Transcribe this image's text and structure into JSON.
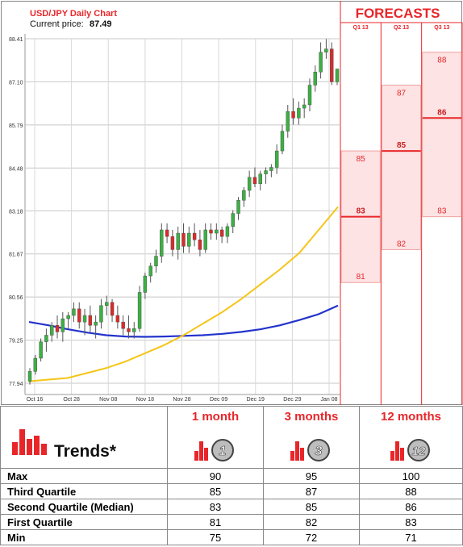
{
  "header": {
    "title": "USD/JPY Daily Chart",
    "current_price_label": "Current price:",
    "current_price_value": "87.49",
    "forecasts_title": "FORECASTS"
  },
  "colors": {
    "accent_red": "#e8262a",
    "bull_candle": "#3cb043",
    "bear_candle": "#d92b2b",
    "ma_fast": "#f5c518",
    "ma_slow": "#2233cc",
    "forecast_fill": "#fde3e3",
    "forecast_line": "#e8262a"
  },
  "chart_data": {
    "type": "candlestick",
    "y_ticks": [
      "88.41",
      "87.10",
      "85.79",
      "84.48",
      "83.18",
      "81.87",
      "80.56",
      "79.25",
      "77.94"
    ],
    "ylim": [
      77.94,
      88.41
    ],
    "x_ticks": [
      "Oct 16",
      "Oct 28",
      "Nov 08",
      "Nov 18",
      "Nov 28",
      "Dec 09",
      "Dec 19",
      "Dec 29",
      "Jan 08"
    ],
    "candles": [
      [
        78.0,
        78.4,
        77.9,
        78.3
      ],
      [
        78.3,
        78.8,
        78.2,
        78.7
      ],
      [
        78.7,
        79.3,
        78.6,
        79.2
      ],
      [
        79.2,
        79.6,
        78.9,
        79.4
      ],
      [
        79.4,
        79.8,
        79.2,
        79.7
      ],
      [
        79.7,
        80.0,
        79.3,
        79.5
      ],
      [
        79.5,
        80.1,
        79.2,
        79.9
      ],
      [
        79.9,
        80.1,
        79.6,
        80.0
      ],
      [
        80.0,
        80.4,
        79.8,
        80.2
      ],
      [
        80.2,
        80.4,
        79.6,
        79.8
      ],
      [
        79.8,
        80.2,
        79.4,
        80.0
      ],
      [
        80.0,
        80.3,
        79.5,
        79.7
      ],
      [
        79.7,
        80.0,
        79.3,
        79.8
      ],
      [
        79.8,
        80.5,
        79.6,
        80.3
      ],
      [
        80.3,
        80.6,
        80.0,
        80.4
      ],
      [
        80.4,
        80.5,
        79.8,
        80.0
      ],
      [
        80.0,
        80.3,
        79.6,
        79.8
      ],
      [
        79.8,
        80.0,
        79.4,
        79.6
      ],
      [
        79.6,
        80.0,
        79.3,
        79.5
      ],
      [
        79.5,
        79.8,
        79.3,
        79.6
      ],
      [
        79.6,
        80.9,
        79.5,
        80.7
      ],
      [
        80.7,
        81.3,
        80.5,
        81.2
      ],
      [
        81.2,
        81.6,
        81.0,
        81.5
      ],
      [
        81.5,
        82.0,
        81.3,
        81.8
      ],
      [
        81.8,
        82.8,
        81.6,
        82.6
      ],
      [
        82.6,
        82.8,
        82.2,
        82.4
      ],
      [
        82.4,
        82.6,
        81.8,
        82.0
      ],
      [
        82.0,
        82.7,
        81.7,
        82.5
      ],
      [
        82.5,
        82.8,
        81.9,
        82.1
      ],
      [
        82.1,
        82.7,
        81.9,
        82.5
      ],
      [
        82.5,
        82.8,
        82.1,
        82.3
      ],
      [
        82.3,
        82.6,
        81.8,
        82.0
      ],
      [
        82.0,
        82.8,
        81.9,
        82.6
      ],
      [
        82.6,
        82.8,
        82.3,
        82.5
      ],
      [
        82.5,
        82.8,
        82.3,
        82.6
      ],
      [
        82.6,
        82.7,
        82.2,
        82.4
      ],
      [
        82.4,
        82.8,
        82.2,
        82.7
      ],
      [
        82.7,
        83.2,
        82.5,
        83.1
      ],
      [
        83.1,
        83.6,
        82.9,
        83.5
      ],
      [
        83.5,
        83.9,
        83.3,
        83.8
      ],
      [
        83.8,
        84.4,
        83.6,
        84.2
      ],
      [
        84.2,
        84.5,
        83.9,
        84.0
      ],
      [
        84.0,
        84.4,
        83.8,
        84.3
      ],
      [
        84.3,
        84.5,
        84.0,
        84.4
      ],
      [
        84.4,
        84.6,
        84.2,
        84.5
      ],
      [
        84.5,
        85.2,
        84.3,
        85.0
      ],
      [
        85.0,
        85.8,
        84.9,
        85.6
      ],
      [
        85.6,
        86.4,
        85.4,
        86.2
      ],
      [
        86.2,
        86.6,
        85.8,
        86.0
      ],
      [
        86.0,
        86.5,
        85.8,
        86.3
      ],
      [
        86.3,
        86.6,
        86.0,
        86.4
      ],
      [
        86.4,
        87.2,
        86.2,
        87.0
      ],
      [
        87.0,
        87.6,
        86.8,
        87.4
      ],
      [
        87.4,
        88.3,
        87.2,
        88.0
      ],
      [
        88.0,
        88.4,
        87.8,
        88.1
      ],
      [
        88.1,
        88.3,
        87.0,
        87.1
      ],
      [
        87.1,
        87.5,
        87.0,
        87.49
      ]
    ],
    "ma_fast": [
      78.0,
      78.05,
      78.1,
      78.25,
      78.4,
      78.6,
      78.85,
      79.1,
      79.4,
      79.75,
      80.1,
      80.5,
      80.95,
      81.4,
      81.9,
      82.6,
      83.3
    ],
    "ma_slow": [
      79.8,
      79.7,
      79.58,
      79.48,
      79.4,
      79.36,
      79.35,
      79.36,
      79.38,
      79.4,
      79.44,
      79.5,
      79.58,
      79.7,
      79.86,
      80.04,
      80.3
    ],
    "forecast_columns": [
      {
        "label": "Q1 13",
        "max": "85",
        "median": "83",
        "min": "81",
        "max_v": 85,
        "median_v": 83,
        "min_v": 81
      },
      {
        "label": "Q2 13",
        "max": "87",
        "median": "85",
        "min": "82",
        "max_v": 87,
        "median_v": 85,
        "min_v": 82
      },
      {
        "label": "Q3 13",
        "max": "88",
        "median": "86",
        "min": "83",
        "max_v": 88,
        "median_v": 86,
        "min_v": 83
      }
    ]
  },
  "trends": {
    "title": "Trends*",
    "columns": [
      {
        "label": "1 month",
        "badge": "1"
      },
      {
        "label": "3 months",
        "badge": "3"
      },
      {
        "label": "12 months",
        "badge": "12"
      }
    ],
    "rows": [
      {
        "label": "Max",
        "values": [
          "90",
          "95",
          "100"
        ]
      },
      {
        "label": "Third Quartile",
        "values": [
          "85",
          "87",
          "88"
        ]
      },
      {
        "label": "Second Quartile (Median)",
        "values": [
          "83",
          "85",
          "86"
        ]
      },
      {
        "label": "First Quartile",
        "values": [
          "81",
          "82",
          "83"
        ]
      },
      {
        "label": "Min",
        "values": [
          "75",
          "72",
          "71"
        ]
      }
    ]
  }
}
